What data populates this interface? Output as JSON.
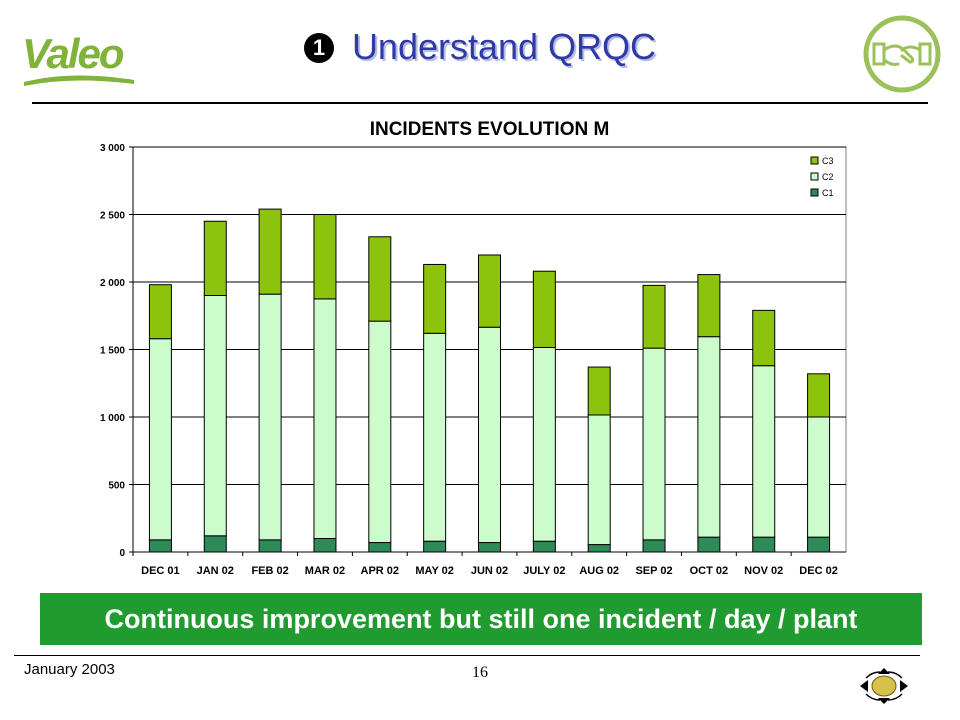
{
  "header": {
    "logo_text": "Valeo",
    "bullet": "1",
    "title": "Understand QRQC"
  },
  "colors": {
    "c1": "#2e8b57",
    "c2": "#ccfccc",
    "c3": "#8cc30c",
    "banner": "#1f9b2f",
    "title": "#2f3aa8"
  },
  "chart_data": {
    "type": "bar",
    "stacked": true,
    "title": "INCIDENTS EVOLUTION M",
    "xlabel": "",
    "ylabel": "",
    "ylim": [
      0,
      3000
    ],
    "yticks": [
      0,
      500,
      1000,
      1500,
      2000,
      2500,
      3000
    ],
    "ytick_labels": [
      "0",
      "500",
      "1 000",
      "1 500",
      "2 000",
      "2 500",
      "3 000"
    ],
    "grid": true,
    "legend": "top-right",
    "categories": [
      "DEC 01",
      "JAN 02",
      "FEB 02",
      "MAR 02",
      "APR 02",
      "MAY 02",
      "JUN 02",
      "JULY 02",
      "AUG 02",
      "SEP 02",
      "OCT 02",
      "NOV 02",
      "DEC 02"
    ],
    "series": [
      {
        "name": "C1",
        "values": [
          90,
          120,
          90,
          100,
          70,
          80,
          70,
          80,
          55,
          90,
          110,
          110,
          110
        ]
      },
      {
        "name": "C2",
        "values": [
          1490,
          1780,
          1820,
          1775,
          1640,
          1540,
          1595,
          1435,
          960,
          1420,
          1485,
          1270,
          890
        ]
      },
      {
        "name": "C3",
        "values": [
          400,
          550,
          630,
          625,
          625,
          510,
          535,
          565,
          355,
          465,
          460,
          410,
          320
        ]
      }
    ]
  },
  "banner": {
    "text": "Continuous improvement but still one incident / day / plant"
  },
  "footer": {
    "date": "January 2003",
    "page": "16"
  }
}
